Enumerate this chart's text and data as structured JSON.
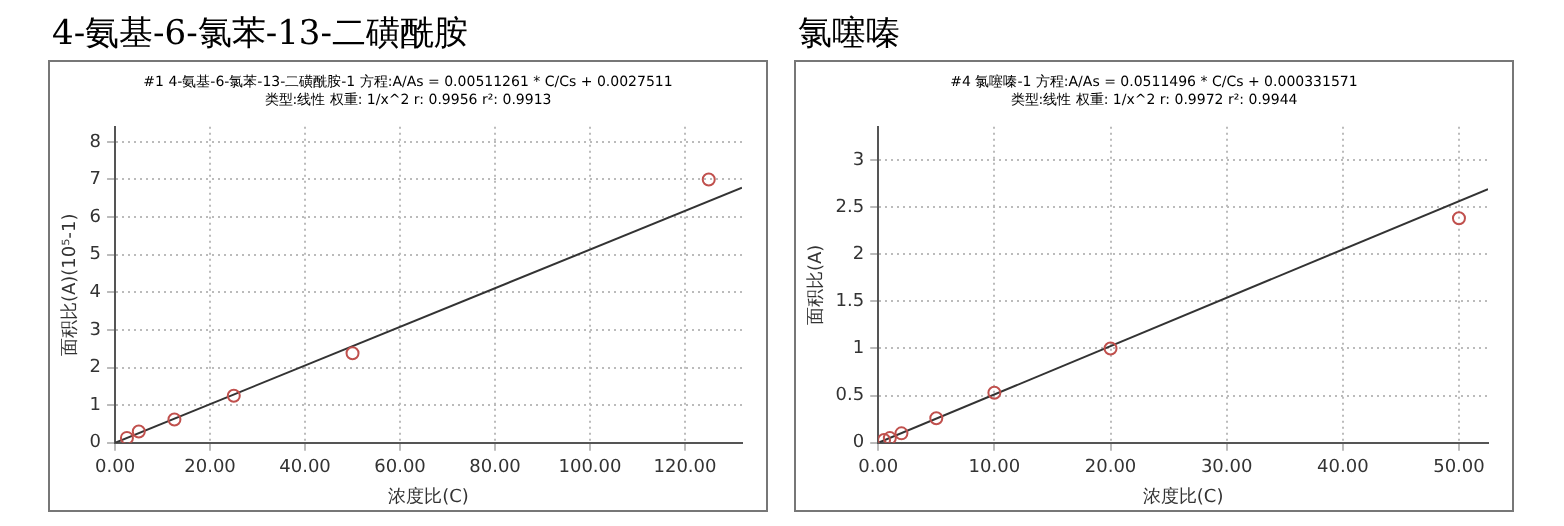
{
  "chart_data": [
    {
      "type": "scatter",
      "title": "4-氨基-6-氯苯-13-二磺酰胺",
      "subtitle": "#1  4-氨基-6-氯苯-13-二磺酰胺-1  方程:A/As = 0.00511261 * C/Cs + 0.0027511\n类型:线性   权重:  1/x^2   r:  0.9956  r²:  0.9913",
      "xlabel": "浓度比(C)",
      "ylabel": "面积比(A)(10⁵-1)",
      "xlim": [
        0,
        132
      ],
      "ylim": [
        0,
        8.4
      ],
      "xticks": [
        {
          "value": 0,
          "label": "0.00"
        },
        {
          "value": 20,
          "label": "20.00"
        },
        {
          "value": 40,
          "label": "40.00"
        },
        {
          "value": 60,
          "label": "60.00"
        },
        {
          "value": 80,
          "label": "80.00"
        },
        {
          "value": 100,
          "label": "100.00"
        },
        {
          "value": 120,
          "label": "120.00"
        }
      ],
      "yticks": [
        0,
        1,
        2,
        3,
        4,
        5,
        6,
        7,
        8
      ],
      "grid": true,
      "legend": false,
      "series": [
        {
          "marker": "circle",
          "color": "#c0504d",
          "x": [
            2.5,
            5,
            12.5,
            25,
            50,
            125
          ],
          "values": [
            0.13,
            0.3,
            0.62,
            1.25,
            2.38,
            7.0
          ]
        },
        {
          "type": "line",
          "marker": "none",
          "color": "#333333",
          "x": [
            0,
            132
          ],
          "values": [
            0.0,
            6.78
          ]
        }
      ]
    },
    {
      "type": "scatter",
      "title": "氯噻嗪",
      "subtitle": "#4   氯噻嗪-1   方程:A/As = 0.0511496 * C/Cs + 0.000331571\n类型:线性   权重:  1/x^2   r:  0.9972  r²:  0.9944",
      "xlabel": "浓度比(C)",
      "ylabel": "面积比(A)",
      "xlim": [
        0,
        52.5
      ],
      "ylim": [
        0,
        3.35
      ],
      "xticks": [
        {
          "value": 0,
          "label": "0.00"
        },
        {
          "value": 10,
          "label": "10.00"
        },
        {
          "value": 20,
          "label": "20.00"
        },
        {
          "value": 30,
          "label": "30.00"
        },
        {
          "value": 40,
          "label": "40.00"
        },
        {
          "value": 50,
          "label": "50.00"
        }
      ],
      "yticks": [
        0,
        0.5,
        1,
        1.5,
        2,
        2.5,
        3
      ],
      "grid": true,
      "legend": false,
      "series": [
        {
          "marker": "circle",
          "color": "#c0504d",
          "x": [
            0.5,
            1,
            2,
            5,
            10,
            20,
            50
          ],
          "values": [
            0.03,
            0.05,
            0.1,
            0.26,
            0.53,
            1.0,
            2.38
          ]
        },
        {
          "type": "line",
          "marker": "none",
          "color": "#333333",
          "x": [
            0,
            52.5
          ],
          "values": [
            0.0,
            2.69
          ]
        }
      ]
    }
  ]
}
